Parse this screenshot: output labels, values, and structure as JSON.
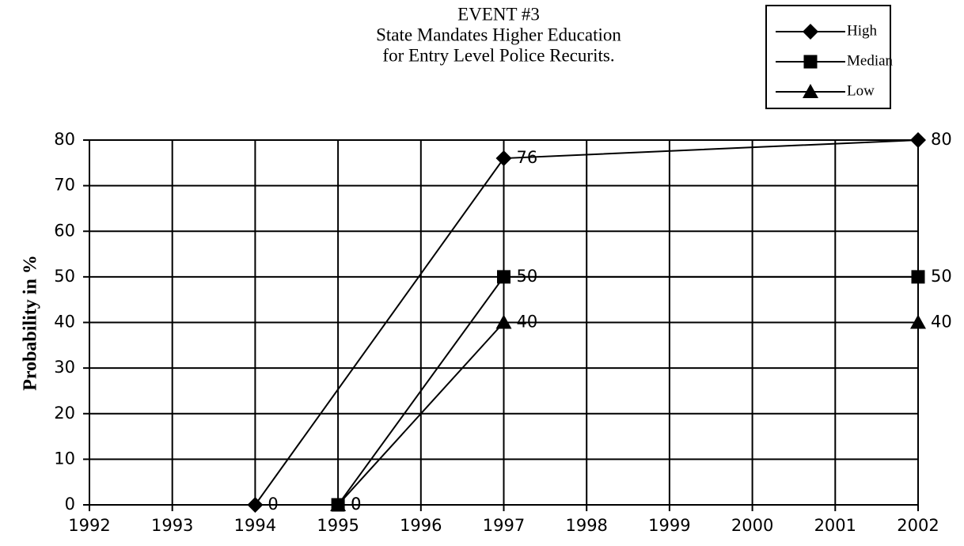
{
  "chart_data": {
    "type": "line",
    "title": [
      "EVENT #3",
      "State Mandates Higher Education",
      "for Entry Level Police Recurits."
    ],
    "ylabel": "Probability in %",
    "xlim": [
      1992,
      2002
    ],
    "xticks": [
      1992,
      1993,
      1994,
      1995,
      1996,
      1997,
      1998,
      1999,
      2000,
      2001,
      2002
    ],
    "ylim": [
      0,
      80
    ],
    "yticks": [
      0,
      10,
      20,
      30,
      40,
      50,
      60,
      70,
      80
    ],
    "grid": true,
    "legend": "top-right",
    "series": [
      {
        "name": "High",
        "color": "#000000",
        "marker": "diamond",
        "x": [
          1994,
          1997,
          2002
        ],
        "values": [
          0,
          76,
          80
        ]
      },
      {
        "name": "Median",
        "color": "#000000",
        "marker": "square",
        "x": [
          1995,
          1997,
          2002
        ],
        "values": [
          0,
          50,
          50
        ]
      },
      {
        "name": "Low",
        "color": "#000000",
        "marker": "triangle",
        "x": [
          1995,
          1997,
          2002
        ],
        "values": [
          0,
          40,
          40
        ]
      }
    ]
  }
}
